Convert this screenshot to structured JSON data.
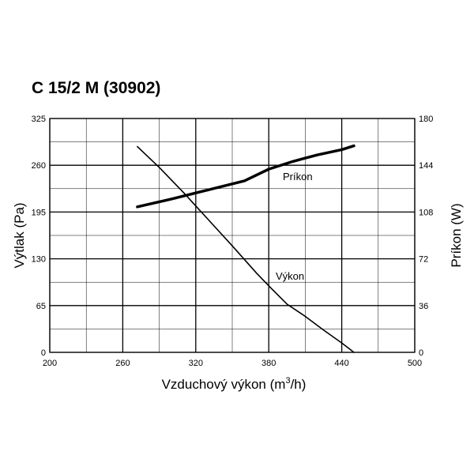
{
  "chart_data": {
    "type": "line",
    "title": "C 15/2 M (30902)",
    "xlabel": "Vzduchový výkon (m³/h)",
    "xlabel_main": "Vzduchový výkon (m",
    "xlabel_sup": "3",
    "xlabel_end": "/h)",
    "ylabel": "Výtlak (Pa)",
    "y2label": "Príkon (W)",
    "xlim": [
      200,
      500
    ],
    "ylim": [
      0,
      325
    ],
    "y2lim": [
      0,
      180
    ],
    "xticks": [
      200,
      260,
      320,
      380,
      440,
      500
    ],
    "yticks": [
      0,
      65,
      130,
      195,
      260,
      325
    ],
    "y2ticks": [
      0,
      36,
      72,
      108,
      144,
      180
    ],
    "grid": true,
    "series": [
      {
        "name": "Výkon",
        "axis": "left",
        "x": [
          272,
          290,
          310,
          330,
          350,
          370,
          382,
          395,
          410,
          425,
          440,
          450
        ],
        "y": [
          286,
          257,
          222,
          185,
          148,
          110,
          89,
          67,
          50,
          31,
          13,
          0
        ]
      },
      {
        "name": "Príkon",
        "axis": "right",
        "x": [
          272,
          300,
          330,
          360,
          380,
          400,
          420,
          440,
          450
        ],
        "y": [
          112,
          118,
          125,
          132,
          141,
          147,
          152,
          156,
          159
        ]
      }
    ]
  }
}
